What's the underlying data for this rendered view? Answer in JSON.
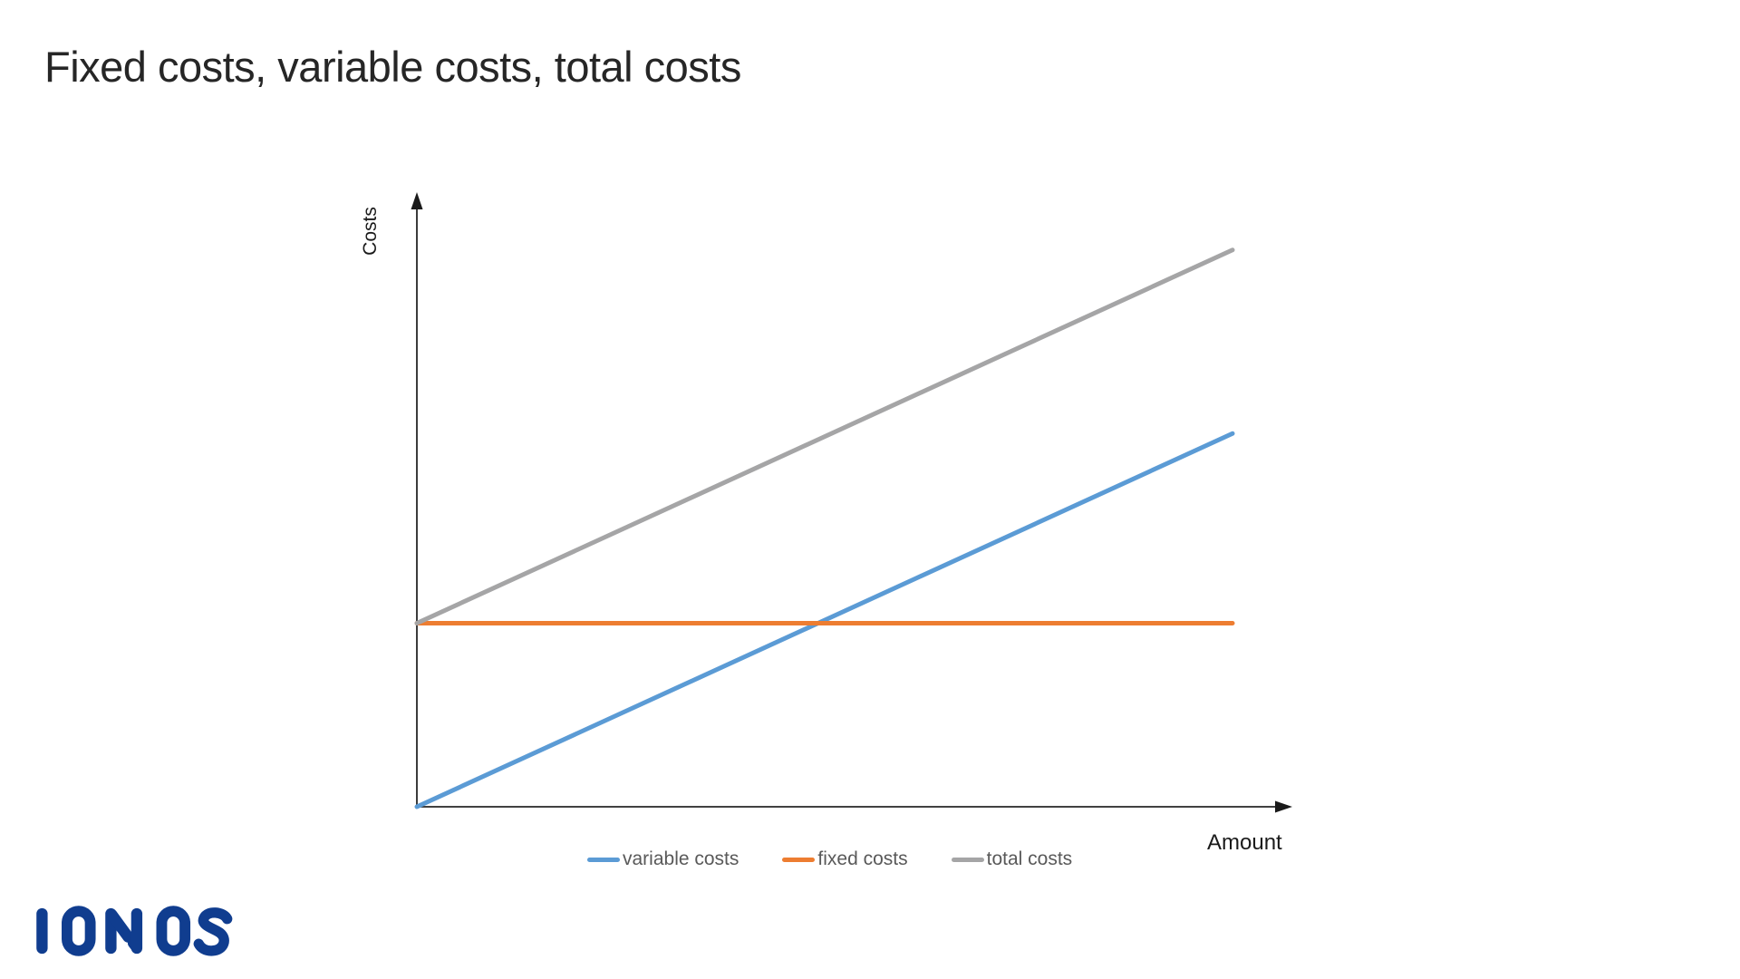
{
  "header": {
    "title": "Fixed costs, variable costs, total costs"
  },
  "chart_data": {
    "type": "line",
    "title": "Fixed costs, variable costs, total costs",
    "xlabel": "Amount",
    "ylabel": "Costs",
    "x_range": [
      0,
      1
    ],
    "y_range": [
      0,
      1
    ],
    "axes": {
      "ticks": "none",
      "grid": false,
      "arrowheads": true,
      "color": "#262626"
    },
    "legend": {
      "position": "bottom"
    },
    "series": [
      {
        "name": "variable costs",
        "color": "#5B9BD5",
        "points": [
          [
            0,
            0.0
          ],
          [
            1,
            0.61
          ]
        ]
      },
      {
        "name": "fixed costs",
        "color": "#ED7D31",
        "points": [
          [
            0,
            0.3
          ],
          [
            1,
            0.3
          ]
        ]
      },
      {
        "name": "total costs",
        "color": "#A5A5A6",
        "points": [
          [
            0,
            0.3
          ],
          [
            1,
            0.91
          ]
        ]
      }
    ]
  },
  "branding": {
    "logo_text": "IONOS",
    "logo_color": "#103D8F"
  }
}
